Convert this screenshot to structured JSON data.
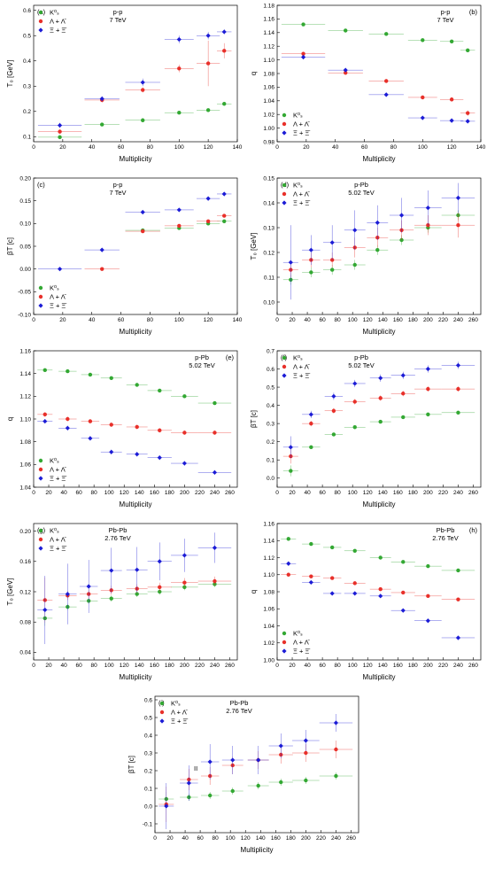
{
  "chart_data": [
    {
      "type": "scatter",
      "panel": "(a)",
      "annotation": [
        "p-p",
        "7 TeV"
      ],
      "xlabel": "Multiplicity",
      "ylabel": "T₀ [GeV]",
      "legend": "upper left",
      "xlim": [
        0,
        140
      ],
      "xticks": [
        0,
        20,
        40,
        60,
        80,
        100,
        120,
        140
      ],
      "ylim": [
        0.08,
        0.62
      ],
      "yticks": [
        0.1,
        0.2,
        0.3,
        0.4,
        0.5,
        0.6
      ],
      "x": [
        18,
        47,
        75,
        100,
        120,
        131
      ],
      "xerr": [
        15,
        12,
        12,
        10,
        8,
        5
      ],
      "series": [
        {
          "name": "K⁰ₛ",
          "color": "#33a833",
          "values": [
            0.098,
            0.148,
            0.165,
            0.195,
            0.205,
            0.23
          ],
          "errors": [
            0.005,
            0.005,
            0.005,
            0.005,
            0.006,
            0.008
          ]
        },
        {
          "name": "Λ + Λ̄",
          "color": "#e8302a",
          "values": [
            0.12,
            0.245,
            0.285,
            0.37,
            0.39,
            0.44
          ],
          "errors": [
            0.01,
            0.01,
            0.01,
            0.015,
            0.09,
            0.03
          ]
        },
        {
          "name": "Ξ + Ξ̄",
          "color": "#1c1cd6",
          "values": [
            0.145,
            0.25,
            0.315,
            0.485,
            0.5,
            0.515
          ],
          "errors": [
            0.01,
            0.01,
            0.015,
            0.015,
            0.015,
            0.01
          ]
        }
      ]
    },
    {
      "type": "scatter",
      "panel": "(b)",
      "annotation": [
        "p-p",
        "7 TeV"
      ],
      "xlabel": "Multiplicity",
      "ylabel": "q",
      "legend": "lower left",
      "xlim": [
        0,
        140
      ],
      "xticks": [
        0,
        20,
        40,
        60,
        80,
        100,
        120,
        140
      ],
      "ylim": [
        0.98,
        1.18
      ],
      "yticks": [
        0.98,
        {
          "value": 1,
          "label": "1.00"
        },
        1.02,
        1.04,
        1.06,
        1.08,
        {
          "value": 1.1,
          "label": "1.10"
        },
        1.12,
        1.14,
        1.16,
        1.18
      ],
      "x": [
        18,
        47,
        75,
        100,
        120,
        131
      ],
      "xerr": [
        15,
        12,
        12,
        10,
        8,
        5
      ],
      "series": [
        {
          "name": "K⁰ₛ",
          "color": "#33a833",
          "values": [
            1.152,
            1.143,
            1.138,
            1.129,
            1.127,
            1.114
          ],
          "errors": [
            0.002,
            0.002,
            0.002,
            0.002,
            0.002,
            0.002
          ]
        },
        {
          "name": "Λ + Λ̄",
          "color": "#e8302a",
          "values": [
            1.109,
            1.081,
            1.069,
            1.045,
            1.042,
            1.022
          ],
          "errors": [
            0.003,
            0.003,
            0.003,
            0.003,
            0.003,
            0.004
          ]
        },
        {
          "name": "Ξ + Ξ̄",
          "color": "#1c1cd6",
          "values": [
            1.104,
            1.085,
            1.049,
            1.015,
            1.011,
            1.01
          ],
          "errors": [
            0.003,
            0.003,
            0.003,
            0.003,
            0.003,
            0.003
          ]
        }
      ]
    },
    {
      "type": "scatter",
      "panel": "(c)",
      "annotation": [
        "p-p",
        "7 TeV"
      ],
      "xlabel": "Multiplicity",
      "ylabel": "βT [c]",
      "legend": "lower left",
      "xlim": [
        0,
        140
      ],
      "xticks": [
        0,
        20,
        40,
        60,
        80,
        100,
        120,
        140
      ],
      "ylim": [
        -0.1,
        0.2
      ],
      "yticks": [
        {
          "value": -0.1,
          "label": "-0.10"
        },
        -0.05,
        {
          "value": 0,
          "label": "0.00"
        },
        0.05,
        {
          "value": 0.1,
          "label": "0.10"
        },
        0.15,
        {
          "value": 0.2,
          "label": "0.20"
        }
      ],
      "x": [
        18,
        47,
        75,
        100,
        120,
        131
      ],
      "xerr": [
        15,
        12,
        12,
        10,
        8,
        5
      ],
      "series": [
        {
          "name": "K⁰ₛ",
          "color": "#33a833",
          "values": [
            null,
            null,
            0.085,
            0.09,
            0.1,
            0.105
          ],
          "errors": [
            null,
            null,
            0.003,
            0.003,
            0.003,
            0.003
          ]
        },
        {
          "name": "Λ + Λ̄",
          "color": "#e8302a",
          "values": [
            null,
            0,
            0.083,
            0.095,
            0.105,
            0.117
          ],
          "errors": [
            null,
            0.003,
            0.003,
            0.003,
            0.003,
            0.004
          ]
        },
        {
          "name": "Ξ + Ξ̄",
          "color": "#1c1cd6",
          "values": [
            0,
            0.042,
            0.125,
            0.13,
            0.155,
            0.165
          ],
          "errors": [
            0.003,
            0.003,
            0.004,
            0.004,
            0.004,
            0.004
          ]
        }
      ]
    },
    {
      "type": "scatter",
      "panel": "(d)",
      "annotation": [
        "p-Pb",
        "5.02 TeV"
      ],
      "xlabel": "Multiplicity",
      "ylabel": "T₀ [GeV]",
      "legend": "upper left",
      "xlim": [
        0,
        270
      ],
      "xticks": [
        0,
        20,
        40,
        60,
        80,
        100,
        120,
        140,
        160,
        180,
        200,
        220,
        240,
        260
      ],
      "ylim": [
        0.095,
        0.15
      ],
      "yticks": [
        {
          "value": 0.1,
          "label": "0.10"
        },
        0.11,
        0.12,
        0.13,
        0.14,
        0.15
      ],
      "x": [
        18,
        45,
        73,
        103,
        133,
        165,
        200,
        240
      ],
      "xerr": [
        10,
        12,
        12,
        14,
        14,
        16,
        18,
        22
      ],
      "series": [
        {
          "name": "K⁰ₛ",
          "color": "#33a833",
          "values": [
            0.109,
            0.112,
            0.113,
            0.115,
            0.121,
            0.125,
            0.13,
            0.135
          ],
          "errors": [
            0.002,
            0.002,
            0.002,
            0.002,
            0.002,
            0.002,
            0.002,
            0.002
          ]
        },
        {
          "name": "Λ + Λ̄",
          "color": "#e8302a",
          "values": [
            0.113,
            0.117,
            0.117,
            0.122,
            0.126,
            0.129,
            0.131,
            0.131
          ],
          "errors": [
            0.003,
            0.003,
            0.003,
            0.004,
            0.004,
            0.004,
            0.004,
            0.005
          ]
        },
        {
          "name": "Ξ + Ξ̄",
          "color": "#1c1cd6",
          "values": [
            0.116,
            0.121,
            0.124,
            0.129,
            0.132,
            0.135,
            0.138,
            0.142
          ],
          "errors": [
            0.015,
            0.006,
            0.007,
            0.008,
            0.007,
            0.007,
            0.007,
            0.006
          ]
        }
      ]
    },
    {
      "type": "scatter",
      "panel": "(e)",
      "annotation": [
        "p-Pb",
        "5.02 TeV"
      ],
      "xlabel": "Multiplicity",
      "ylabel": "q",
      "legend": "lower left",
      "xlim": [
        0,
        270
      ],
      "xticks": [
        0,
        20,
        40,
        60,
        80,
        100,
        120,
        140,
        160,
        180,
        200,
        220,
        240,
        260
      ],
      "ylim": [
        1.04,
        1.16
      ],
      "yticks": [
        1.04,
        1.06,
        1.08,
        {
          "value": 1.1,
          "label": "1.10"
        },
        1.12,
        1.14,
        1.16
      ],
      "x": [
        15,
        45,
        75,
        103,
        137,
        167,
        200,
        240
      ],
      "xerr": [
        10,
        12,
        12,
        14,
        14,
        16,
        18,
        22
      ],
      "series": [
        {
          "name": "K⁰ₛ",
          "color": "#33a833",
          "values": [
            1.143,
            1.142,
            1.139,
            1.136,
            1.13,
            1.125,
            1.12,
            1.114
          ],
          "errors": [
            0.001,
            0.001,
            0.001,
            0.001,
            0.001,
            0.001,
            0.001,
            0.001
          ]
        },
        {
          "name": "Λ + Λ̄",
          "color": "#e8302a",
          "values": [
            1.104,
            1.1,
            1.098,
            1.095,
            1.093,
            1.09,
            1.088,
            1.088
          ],
          "errors": [
            0.002,
            0.002,
            0.002,
            0.002,
            0.002,
            0.002,
            0.002,
            0.002
          ]
        },
        {
          "name": "Ξ + Ξ̄",
          "color": "#1c1cd6",
          "values": [
            1.098,
            1.092,
            1.083,
            1.071,
            1.069,
            1.066,
            1.061,
            1.053
          ],
          "errors": [
            0.002,
            0.002,
            0.002,
            0.002,
            0.002,
            0.002,
            0.002,
            0.002
          ]
        }
      ]
    },
    {
      "type": "scatter",
      "panel": "(f)",
      "annotation": [
        "p-Pb",
        "5.02 TeV"
      ],
      "xlabel": "Multiplicity",
      "ylabel": "βT [c]",
      "legend": "upper left",
      "xlim": [
        0,
        270
      ],
      "xticks": [
        0,
        20,
        40,
        60,
        80,
        100,
        120,
        140,
        160,
        180,
        200,
        220,
        240,
        260
      ],
      "ylim": [
        -0.05,
        0.7
      ],
      "yticks": [
        {
          "value": 0,
          "label": "0.0"
        },
        0.1,
        0.2,
        0.3,
        0.4,
        0.5,
        0.6,
        0.7
      ],
      "x": [
        18,
        45,
        75,
        103,
        137,
        167,
        200,
        240
      ],
      "xerr": [
        10,
        12,
        12,
        14,
        14,
        16,
        18,
        22
      ],
      "series": [
        {
          "name": "K⁰ₛ",
          "color": "#33a833",
          "values": [
            0.04,
            0.17,
            0.24,
            0.28,
            0.31,
            0.335,
            0.35,
            0.36
          ],
          "errors": [
            0.03,
            0.01,
            0.01,
            0.01,
            0.01,
            0.01,
            0.01,
            0.01
          ]
        },
        {
          "name": "Λ + Λ̄",
          "color": "#e8302a",
          "values": [
            0.12,
            0.3,
            0.37,
            0.42,
            0.44,
            0.465,
            0.49,
            0.49
          ],
          "errors": [
            0.04,
            0.015,
            0.015,
            0.015,
            0.015,
            0.015,
            0.015,
            0.015
          ]
        },
        {
          "name": "Ξ + Ξ̄",
          "color": "#1c1cd6",
          "values": [
            0.17,
            0.35,
            0.45,
            0.52,
            0.55,
            0.565,
            0.6,
            0.62
          ],
          "errors": [
            0.06,
            0.02,
            0.02,
            0.02,
            0.02,
            0.02,
            0.02,
            0.02
          ]
        }
      ]
    },
    {
      "type": "scatter",
      "panel": "(g)",
      "annotation": [
        "Pb-Pb",
        "2.76 TeV"
      ],
      "xlabel": "Multiplicity",
      "ylabel": "T₀ [GeV]",
      "legend": "upper left",
      "xlim": [
        0,
        270
      ],
      "xticks": [
        0,
        20,
        40,
        60,
        80,
        100,
        120,
        140,
        160,
        180,
        200,
        220,
        240,
        260
      ],
      "ylim": [
        0.03,
        0.21
      ],
      "yticks": [
        0.04,
        0.08,
        0.12,
        0.16,
        {
          "value": 0.2,
          "label": "0.20"
        }
      ],
      "x": [
        15,
        45,
        73,
        103,
        137,
        167,
        200,
        240
      ],
      "xerr": [
        10,
        12,
        12,
        14,
        14,
        16,
        18,
        22
      ],
      "series": [
        {
          "name": "K⁰ₛ",
          "color": "#33a833",
          "values": [
            0.085,
            0.1,
            0.108,
            0.111,
            0.117,
            0.12,
            0.126,
            0.13
          ],
          "errors": [
            0.01,
            0.004,
            0.004,
            0.004,
            0.004,
            0.004,
            0.004,
            0.004
          ]
        },
        {
          "name": "Λ + Λ̄",
          "color": "#e8302a",
          "values": [
            0.109,
            0.115,
            0.117,
            0.122,
            0.124,
            0.126,
            0.132,
            0.134
          ],
          "errors": [
            0.03,
            0.006,
            0.006,
            0.006,
            0.006,
            0.006,
            0.006,
            0.006
          ]
        },
        {
          "name": "Ξ + Ξ̄",
          "color": "#1c1cd6",
          "values": [
            0.096,
            0.117,
            0.127,
            0.148,
            0.149,
            0.16,
            0.168,
            0.178
          ],
          "errors": [
            0.045,
            0.04,
            0.035,
            0.03,
            0.03,
            0.025,
            0.022,
            0.02
          ]
        }
      ]
    },
    {
      "type": "scatter",
      "panel": "(h)",
      "annotation": [
        "Pb-Pb",
        "2.76 TeV"
      ],
      "xlabel": "Multiplicity",
      "ylabel": "q",
      "legend": "lower left",
      "xlim": [
        0,
        270
      ],
      "xticks": [
        0,
        20,
        40,
        60,
        80,
        100,
        120,
        140,
        160,
        180,
        200,
        220,
        240,
        260
      ],
      "ylim": [
        1,
        1.16
      ],
      "yticks": [
        {
          "value": 1,
          "label": "1.00"
        },
        1.02,
        1.04,
        1.06,
        1.08,
        {
          "value": 1.1,
          "label": "1.10"
        },
        1.12,
        1.14,
        1.16
      ],
      "x": [
        15,
        45,
        73,
        103,
        137,
        167,
        200,
        240
      ],
      "xerr": [
        10,
        12,
        12,
        14,
        14,
        16,
        18,
        22
      ],
      "series": [
        {
          "name": "K⁰ₛ",
          "color": "#33a833",
          "values": [
            1.142,
            1.136,
            1.132,
            1.128,
            1.12,
            1.115,
            1.11,
            1.105
          ],
          "errors": [
            0.001,
            0.001,
            0.001,
            0.001,
            0.001,
            0.001,
            0.001,
            0.001
          ]
        },
        {
          "name": "Λ + Λ̄",
          "color": "#e8302a",
          "values": [
            1.1,
            1.098,
            1.096,
            1.09,
            1.083,
            1.079,
            1.075,
            1.071
          ],
          "errors": [
            0.002,
            0.002,
            0.002,
            0.002,
            0.002,
            0.002,
            0.002,
            0.002
          ]
        },
        {
          "name": "Ξ + Ξ̄",
          "color": "#1c1cd6",
          "values": [
            1.113,
            1.091,
            1.078,
            1.078,
            1.075,
            1.058,
            1.046,
            1.026
          ],
          "errors": [
            0.002,
            0.002,
            0.002,
            0.002,
            0.002,
            0.002,
            0.002,
            0.002
          ]
        }
      ]
    },
    {
      "type": "scatter",
      "panel": "(i)",
      "annotation": [
        "Pb-Pb",
        "2.76 TeV",
        "II"
      ],
      "xlabel": "Multiplicity",
      "ylabel": "βT [c]",
      "legend": "upper left",
      "xlim": [
        0,
        270
      ],
      "xticks": [
        0,
        20,
        40,
        60,
        80,
        100,
        120,
        140,
        160,
        180,
        200,
        220,
        240,
        260
      ],
      "ylim": [
        -0.15,
        0.62
      ],
      "yticks": [
        -0.1,
        {
          "value": 0,
          "label": "0.0"
        },
        0.1,
        0.2,
        0.3,
        0.4,
        0.5,
        0.6
      ],
      "x": [
        15,
        45,
        73,
        103,
        137,
        167,
        200,
        240
      ],
      "xerr": [
        10,
        12,
        12,
        14,
        14,
        16,
        18,
        22
      ],
      "series": [
        {
          "name": "K⁰ₛ",
          "color": "#33a833",
          "values": [
            0.04,
            0.05,
            0.06,
            0.085,
            0.115,
            0.135,
            0.145,
            0.17
          ],
          "errors": [
            0.04,
            0.02,
            0.02,
            0.02,
            0.02,
            0.02,
            0.02,
            0.02
          ]
        },
        {
          "name": "Λ + Λ̄",
          "color": "#e8302a",
          "values": [
            0.01,
            0.15,
            0.17,
            0.23,
            0.26,
            0.29,
            0.3,
            0.32
          ],
          "errors": [
            0.1,
            0.06,
            0.05,
            0.05,
            0.05,
            0.05,
            0.05,
            0.05
          ]
        },
        {
          "name": "Ξ + Ξ̄",
          "color": "#1c1cd6",
          "values": [
            0,
            0.13,
            0.25,
            0.26,
            0.26,
            0.34,
            0.37,
            0.47
          ],
          "errors": [
            0.13,
            0.1,
            0.1,
            0.08,
            0.08,
            0.07,
            0.06,
            0.05
          ]
        }
      ]
    }
  ]
}
